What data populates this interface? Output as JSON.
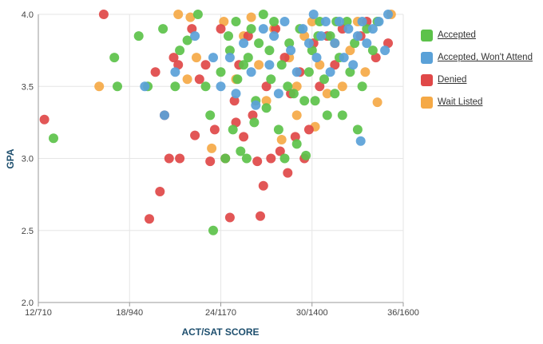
{
  "chart_data": {
    "type": "scatter",
    "xlabel": "ACT/SAT SCORE",
    "ylabel": "GPA",
    "xticks": [
      {
        "value": 12,
        "label": "12/710"
      },
      {
        "value": 18,
        "label": "18/940"
      },
      {
        "value": 24,
        "label": "24/1170"
      },
      {
        "value": 30,
        "label": "30/1400"
      },
      {
        "value": 36,
        "label": "36/1600"
      }
    ],
    "yticks": [
      {
        "value": 2.0,
        "label": "2.0"
      },
      {
        "value": 2.5,
        "label": "2.5"
      },
      {
        "value": 3.0,
        "label": "3.0"
      },
      {
        "value": 3.5,
        "label": "3.5"
      },
      {
        "value": 4.0,
        "label": "4.0"
      }
    ],
    "xlim": [
      12,
      36
    ],
    "ylim": [
      2.0,
      4.0
    ],
    "grid": true,
    "legend_position": "right",
    "series": [
      {
        "name": "Accepted",
        "color": "#5cc24a",
        "points": [
          [
            13.0,
            3.14
          ],
          [
            17.0,
            3.7
          ],
          [
            17.2,
            3.5
          ],
          [
            18.6,
            3.85
          ],
          [
            19.2,
            3.5
          ],
          [
            20.2,
            3.9
          ],
          [
            21.0,
            3.5
          ],
          [
            21.3,
            3.75
          ],
          [
            21.8,
            3.82
          ],
          [
            22.5,
            4.0
          ],
          [
            23.0,
            3.5
          ],
          [
            23.3,
            3.3
          ],
          [
            23.5,
            2.5
          ],
          [
            24.0,
            3.6
          ],
          [
            24.3,
            3.0
          ],
          [
            24.5,
            3.85
          ],
          [
            24.8,
            3.2
          ],
          [
            25.0,
            3.95
          ],
          [
            25.3,
            3.05
          ],
          [
            25.5,
            3.65
          ],
          [
            25.8,
            3.7
          ],
          [
            26.0,
            3.9
          ],
          [
            26.3,
            3.4
          ],
          [
            26.5,
            3.8
          ],
          [
            26.8,
            4.0
          ],
          [
            27.0,
            3.35
          ],
          [
            27.3,
            3.55
          ],
          [
            27.5,
            3.95
          ],
          [
            27.8,
            3.2
          ],
          [
            28.0,
            3.65
          ],
          [
            28.2,
            3.0
          ],
          [
            28.5,
            3.8
          ],
          [
            28.8,
            3.45
          ],
          [
            29.0,
            3.1
          ],
          [
            29.2,
            3.9
          ],
          [
            29.5,
            3.4
          ],
          [
            29.8,
            3.6
          ],
          [
            30.0,
            3.75
          ],
          [
            30.2,
            3.4
          ],
          [
            30.5,
            3.95
          ],
          [
            30.8,
            3.55
          ],
          [
            31.0,
            3.3
          ],
          [
            31.2,
            3.85
          ],
          [
            31.5,
            3.45
          ],
          [
            31.8,
            3.7
          ],
          [
            32.0,
            3.3
          ],
          [
            32.3,
            3.95
          ],
          [
            32.5,
            3.6
          ],
          [
            32.8,
            3.8
          ],
          [
            33.0,
            3.2
          ],
          [
            33.3,
            3.5
          ],
          [
            33.6,
            3.9
          ],
          [
            34.0,
            3.75
          ],
          [
            34.3,
            3.95
          ],
          [
            26.2,
            3.25
          ],
          [
            27.2,
            3.75
          ],
          [
            28.4,
            3.5
          ],
          [
            29.6,
            3.02
          ],
          [
            30.4,
            3.85
          ],
          [
            31.6,
            3.95
          ],
          [
            25.7,
            3.0
          ],
          [
            24.6,
            3.75
          ],
          [
            25.1,
            3.55
          ]
        ]
      },
      {
        "name": "Accepted, Won't Attend",
        "color": "#5aa1d8",
        "points": [
          [
            19.0,
            3.5
          ],
          [
            20.3,
            3.3
          ],
          [
            21.0,
            3.6
          ],
          [
            22.3,
            3.85
          ],
          [
            23.5,
            3.7
          ],
          [
            24.0,
            3.5
          ],
          [
            24.6,
            3.7
          ],
          [
            25.0,
            3.45
          ],
          [
            25.5,
            3.8
          ],
          [
            26.0,
            3.6
          ],
          [
            26.3,
            3.37
          ],
          [
            26.8,
            3.9
          ],
          [
            27.2,
            3.65
          ],
          [
            27.5,
            3.85
          ],
          [
            27.8,
            3.45
          ],
          [
            28.2,
            3.95
          ],
          [
            28.6,
            3.75
          ],
          [
            29.0,
            3.6
          ],
          [
            29.4,
            3.9
          ],
          [
            29.8,
            3.8
          ],
          [
            30.1,
            4.0
          ],
          [
            30.3,
            3.7
          ],
          [
            30.6,
            3.85
          ],
          [
            30.9,
            3.95
          ],
          [
            31.2,
            3.6
          ],
          [
            31.5,
            3.8
          ],
          [
            31.8,
            3.95
          ],
          [
            32.1,
            3.7
          ],
          [
            32.4,
            3.9
          ],
          [
            32.7,
            3.65
          ],
          [
            33.0,
            3.85
          ],
          [
            33.3,
            3.95
          ],
          [
            33.6,
            3.8
          ],
          [
            34.0,
            3.9
          ],
          [
            34.4,
            3.95
          ],
          [
            34.8,
            3.75
          ],
          [
            33.2,
            3.12
          ],
          [
            35.0,
            4.0
          ]
        ]
      },
      {
        "name": "Denied",
        "color": "#e04848",
        "points": [
          [
            12.4,
            3.27
          ],
          [
            16.3,
            4.0
          ],
          [
            19.3,
            2.58
          ],
          [
            19.7,
            3.6
          ],
          [
            20.0,
            2.77
          ],
          [
            20.3,
            3.3
          ],
          [
            20.6,
            3.0
          ],
          [
            20.9,
            3.7
          ],
          [
            21.2,
            3.65
          ],
          [
            21.3,
            3.0
          ],
          [
            22.1,
            3.9
          ],
          [
            22.3,
            3.16
          ],
          [
            22.6,
            3.55
          ],
          [
            23.0,
            3.65
          ],
          [
            23.3,
            2.98
          ],
          [
            23.6,
            3.2
          ],
          [
            24.0,
            3.9
          ],
          [
            24.3,
            3.0
          ],
          [
            24.6,
            2.59
          ],
          [
            24.9,
            3.4
          ],
          [
            25.2,
            3.65
          ],
          [
            25.5,
            3.15
          ],
          [
            25.8,
            3.85
          ],
          [
            26.1,
            3.3
          ],
          [
            26.4,
            2.98
          ],
          [
            26.6,
            2.6
          ],
          [
            26.8,
            2.81
          ],
          [
            27.0,
            3.5
          ],
          [
            27.3,
            3.0
          ],
          [
            27.6,
            3.9
          ],
          [
            27.9,
            3.05
          ],
          [
            28.2,
            3.7
          ],
          [
            28.4,
            2.9
          ],
          [
            28.6,
            3.45
          ],
          [
            28.9,
            3.15
          ],
          [
            29.2,
            3.6
          ],
          [
            29.5,
            3.0
          ],
          [
            29.8,
            3.2
          ],
          [
            30.1,
            3.8
          ],
          [
            30.5,
            3.5
          ],
          [
            31.0,
            3.85
          ],
          [
            31.5,
            3.65
          ],
          [
            32.0,
            3.9
          ],
          [
            33.2,
            3.85
          ],
          [
            33.6,
            3.95
          ],
          [
            34.2,
            3.7
          ],
          [
            35.0,
            3.8
          ],
          [
            25.0,
            3.25
          ]
        ]
      },
      {
        "name": "Wait Listed",
        "color": "#f5a946",
        "points": [
          [
            16.0,
            3.5
          ],
          [
            21.2,
            4.0
          ],
          [
            21.8,
            3.55
          ],
          [
            22.0,
            3.98
          ],
          [
            22.4,
            3.7
          ],
          [
            23.4,
            3.07
          ],
          [
            24.2,
            3.95
          ],
          [
            25.0,
            3.55
          ],
          [
            25.5,
            3.85
          ],
          [
            26.0,
            3.98
          ],
          [
            26.5,
            3.65
          ],
          [
            27.0,
            3.4
          ],
          [
            27.5,
            3.9
          ],
          [
            28.0,
            3.13
          ],
          [
            28.5,
            3.7
          ],
          [
            29.0,
            3.5
          ],
          [
            29.5,
            3.85
          ],
          [
            30.0,
            3.95
          ],
          [
            30.5,
            3.65
          ],
          [
            31.0,
            3.45
          ],
          [
            31.5,
            3.8
          ],
          [
            32.0,
            3.5
          ],
          [
            32.5,
            3.75
          ],
          [
            33.0,
            3.95
          ],
          [
            33.5,
            3.6
          ],
          [
            34.3,
            3.39
          ],
          [
            35.2,
            4.0
          ],
          [
            30.2,
            3.22
          ],
          [
            29.0,
            3.3
          ]
        ]
      }
    ]
  }
}
